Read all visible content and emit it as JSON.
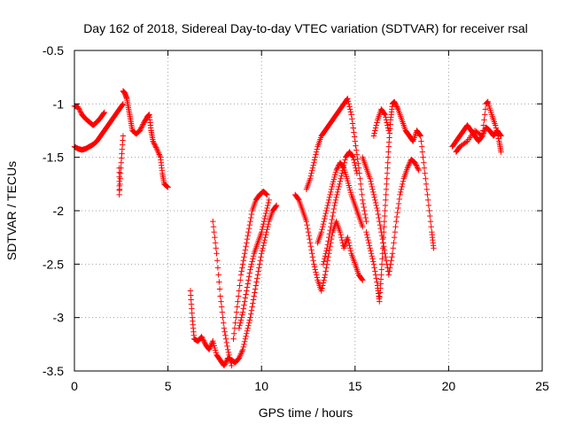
{
  "chart_data": {
    "type": "scatter",
    "title": "Day 162 of 2018, Sidereal Day-to-day VTEC variation (SDTVAR) for receiver rsal",
    "xlabel": "GPS time / hours",
    "ylabel": "SDTVAR / TECUs",
    "xlim": [
      0,
      25
    ],
    "ylim": [
      -3.5,
      -0.5
    ],
    "xticks": [
      0,
      5,
      10,
      15,
      20,
      25
    ],
    "yticks": [
      -3.5,
      -3,
      -2.5,
      -2,
      -1.5,
      -1,
      -0.5
    ],
    "xtick_labels": [
      "0",
      "5",
      "10",
      "15",
      "20",
      "25"
    ],
    "ytick_labels": [
      "-3.5",
      "-3",
      "-2.5",
      "-2",
      "-1.5",
      "-1",
      "-0.5"
    ],
    "grid": true,
    "marker": "+",
    "color": "#ff0000",
    "series": [
      {
        "name": "SDTVAR",
        "tracks": [
          [
            [
              0.0,
              -1.02
            ],
            [
              0.2,
              -1.03
            ],
            [
              0.4,
              -1.1
            ],
            [
              0.6,
              -1.14
            ],
            [
              0.8,
              -1.17
            ],
            [
              1.0,
              -1.2
            ],
            [
              1.2,
              -1.17
            ],
            [
              1.4,
              -1.13
            ],
            [
              1.6,
              -1.08
            ]
          ],
          [
            [
              0.0,
              -1.4
            ],
            [
              0.2,
              -1.42
            ],
            [
              0.4,
              -1.43
            ],
            [
              0.6,
              -1.42
            ],
            [
              0.8,
              -1.4
            ],
            [
              1.0,
              -1.38
            ],
            [
              1.2,
              -1.35
            ],
            [
              1.4,
              -1.3
            ],
            [
              1.6,
              -1.25
            ],
            [
              1.8,
              -1.2
            ],
            [
              2.0,
              -1.15
            ],
            [
              2.2,
              -1.1
            ],
            [
              2.4,
              -1.05
            ],
            [
              2.6,
              -1.0
            ]
          ],
          [
            [
              2.4,
              -1.6
            ],
            [
              2.4,
              -1.85
            ],
            [
              2.5,
              -1.55
            ],
            [
              2.6,
              -1.3
            ]
          ],
          [
            [
              2.6,
              -0.88
            ],
            [
              2.7,
              -0.9
            ],
            [
              2.8,
              -0.95
            ],
            [
              2.9,
              -1.05
            ],
            [
              3.0,
              -1.15
            ],
            [
              3.1,
              -1.25
            ],
            [
              3.3,
              -1.28
            ],
            [
              3.5,
              -1.25
            ],
            [
              3.7,
              -1.18
            ],
            [
              3.9,
              -1.12
            ],
            [
              4.0,
              -1.1
            ],
            [
              4.1,
              -1.25
            ],
            [
              4.2,
              -1.35
            ],
            [
              4.4,
              -1.42
            ],
            [
              4.6,
              -1.5
            ],
            [
              4.7,
              -1.65
            ],
            [
              4.8,
              -1.75
            ],
            [
              5.0,
              -1.78
            ]
          ],
          [
            [
              6.2,
              -2.75
            ],
            [
              6.3,
              -3.0
            ],
            [
              6.4,
              -3.2
            ],
            [
              6.6,
              -3.22
            ],
            [
              6.8,
              -3.18
            ],
            [
              7.0,
              -3.25
            ],
            [
              7.2,
              -3.3
            ],
            [
              7.4,
              -3.22
            ],
            [
              7.6,
              -3.35
            ],
            [
              7.8,
              -3.4
            ],
            [
              8.0,
              -3.45
            ],
            [
              8.2,
              -3.38
            ],
            [
              8.4,
              -3.4
            ],
            [
              8.6,
              -3.42
            ],
            [
              8.8,
              -3.38
            ],
            [
              9.0,
              -3.3
            ],
            [
              9.2,
              -3.15
            ],
            [
              9.4,
              -3.0
            ],
            [
              9.6,
              -2.8
            ],
            [
              9.8,
              -2.6
            ],
            [
              10.0,
              -2.4
            ],
            [
              10.2,
              -2.25
            ],
            [
              10.4,
              -2.1
            ],
            [
              10.6,
              -2.0
            ],
            [
              10.8,
              -1.95
            ]
          ],
          [
            [
              7.4,
              -2.1
            ],
            [
              7.6,
              -2.4
            ],
            [
              7.8,
              -2.8
            ],
            [
              8.0,
              -3.1
            ],
            [
              8.2,
              -3.3
            ],
            [
              8.4,
              -3.45
            ]
          ],
          [
            [
              8.5,
              -3.2
            ],
            [
              8.7,
              -2.9
            ],
            [
              8.9,
              -2.6
            ],
            [
              9.1,
              -2.4
            ],
            [
              9.3,
              -2.2
            ],
            [
              9.5,
              -2.0
            ],
            [
              9.7,
              -1.9
            ],
            [
              9.9,
              -1.85
            ],
            [
              10.1,
              -1.82
            ],
            [
              10.3,
              -1.85
            ]
          ],
          [
            [
              8.8,
              -3.1
            ],
            [
              9.0,
              -2.95
            ],
            [
              9.2,
              -2.75
            ],
            [
              9.4,
              -2.55
            ],
            [
              9.6,
              -2.4
            ],
            [
              9.8,
              -2.3
            ],
            [
              10.0,
              -2.2
            ],
            [
              10.2,
              -2.05
            ],
            [
              10.4,
              -1.9
            ]
          ],
          [
            [
              11.8,
              -1.85
            ],
            [
              12.0,
              -1.9
            ],
            [
              12.2,
              -2.0
            ],
            [
              12.4,
              -2.1
            ],
            [
              12.6,
              -2.3
            ],
            [
              12.8,
              -2.5
            ],
            [
              13.0,
              -2.65
            ],
            [
              13.2,
              -2.75
            ],
            [
              13.4,
              -2.6
            ],
            [
              13.6,
              -2.4
            ],
            [
              13.8,
              -2.2
            ],
            [
              14.0,
              -2.1
            ],
            [
              14.2,
              -2.2
            ],
            [
              14.4,
              -2.35
            ],
            [
              14.6,
              -2.25
            ],
            [
              14.8,
              -2.4
            ],
            [
              15.0,
              -2.5
            ],
            [
              15.2,
              -2.6
            ],
            [
              15.4,
              -2.65
            ]
          ],
          [
            [
              12.4,
              -1.8
            ],
            [
              12.6,
              -1.7
            ],
            [
              12.8,
              -1.55
            ],
            [
              13.0,
              -1.4
            ],
            [
              13.2,
              -1.3
            ],
            [
              13.4,
              -1.25
            ],
            [
              13.6,
              -1.2
            ],
            [
              13.8,
              -1.15
            ],
            [
              14.0,
              -1.1
            ],
            [
              14.2,
              -1.05
            ],
            [
              14.4,
              -1.0
            ],
            [
              14.6,
              -0.95
            ],
            [
              14.8,
              -1.1
            ],
            [
              15.0,
              -1.35
            ],
            [
              15.2,
              -1.6
            ],
            [
              15.4,
              -1.9
            ],
            [
              15.6,
              -2.1
            ]
          ],
          [
            [
              13.0,
              -2.3
            ],
            [
              13.2,
              -2.2
            ],
            [
              13.4,
              -2.05
            ],
            [
              13.6,
              -1.9
            ],
            [
              13.8,
              -1.75
            ],
            [
              14.0,
              -1.62
            ],
            [
              14.2,
              -1.55
            ],
            [
              14.4,
              -1.6
            ],
            [
              14.6,
              -1.72
            ],
            [
              14.8,
              -1.85
            ],
            [
              15.0,
              -1.95
            ],
            [
              15.2,
              -2.05
            ],
            [
              15.4,
              -2.15
            ]
          ],
          [
            [
              13.3,
              -2.5
            ],
            [
              13.5,
              -2.35
            ],
            [
              13.7,
              -2.15
            ],
            [
              13.9,
              -1.95
            ],
            [
              14.1,
              -1.8
            ],
            [
              14.3,
              -1.65
            ],
            [
              14.5,
              -1.5
            ],
            [
              14.7,
              -1.45
            ],
            [
              14.9,
              -1.5
            ],
            [
              15.1,
              -1.65
            ]
          ],
          [
            [
              15.6,
              -2.2
            ],
            [
              15.8,
              -2.35
            ],
            [
              16.0,
              -2.5
            ],
            [
              16.2,
              -2.7
            ],
            [
              16.3,
              -2.85
            ],
            [
              16.4,
              -2.6
            ],
            [
              16.5,
              -2.3
            ],
            [
              16.6,
              -2.0
            ],
            [
              16.7,
              -1.7
            ],
            [
              16.8,
              -1.4
            ],
            [
              16.9,
              -1.15
            ],
            [
              17.0,
              -1.0
            ],
            [
              17.1,
              -0.98
            ],
            [
              17.3,
              -1.05
            ],
            [
              17.5,
              -1.15
            ],
            [
              17.7,
              -1.25
            ],
            [
              17.9,
              -1.3
            ],
            [
              18.1,
              -1.35
            ],
            [
              18.3,
              -1.25
            ],
            [
              18.5,
              -1.3
            ],
            [
              18.7,
              -1.6
            ],
            [
              18.9,
              -1.9
            ],
            [
              19.1,
              -2.2
            ],
            [
              19.2,
              -2.35
            ]
          ],
          [
            [
              15.4,
              -1.5
            ],
            [
              15.6,
              -1.6
            ],
            [
              15.8,
              -1.7
            ],
            [
              16.0,
              -1.85
            ],
            [
              16.2,
              -2.0
            ],
            [
              16.4,
              -2.2
            ],
            [
              16.6,
              -2.4
            ],
            [
              16.8,
              -2.6
            ],
            [
              17.0,
              -2.4
            ],
            [
              17.2,
              -2.1
            ],
            [
              17.4,
              -1.85
            ],
            [
              17.6,
              -1.7
            ],
            [
              17.8,
              -1.6
            ],
            [
              18.0,
              -1.52
            ],
            [
              18.2,
              -1.55
            ],
            [
              18.4,
              -1.62
            ]
          ],
          [
            [
              16.0,
              -1.3
            ],
            [
              16.2,
              -1.15
            ],
            [
              16.4,
              -1.05
            ],
            [
              16.6,
              -1.1
            ],
            [
              16.8,
              -1.25
            ]
          ],
          [
            [
              20.2,
              -1.4
            ],
            [
              20.4,
              -1.35
            ],
            [
              20.6,
              -1.3
            ],
            [
              20.8,
              -1.25
            ],
            [
              21.0,
              -1.2
            ],
            [
              21.2,
              -1.25
            ],
            [
              21.4,
              -1.3
            ],
            [
              21.6,
              -1.35
            ],
            [
              21.8,
              -1.3
            ],
            [
              22.0,
              -1.22
            ],
            [
              22.2,
              -1.25
            ],
            [
              22.4,
              -1.3
            ],
            [
              22.6,
              -1.25
            ],
            [
              22.8,
              -1.3
            ]
          ],
          [
            [
              20.4,
              -1.45
            ],
            [
              20.6,
              -1.4
            ],
            [
              21.0,
              -1.35
            ],
            [
              21.4,
              -1.25
            ],
            [
              21.8,
              -1.3
            ],
            [
              22.0,
              -1.0
            ],
            [
              22.1,
              -0.98
            ],
            [
              22.3,
              -1.1
            ],
            [
              22.5,
              -1.2
            ],
            [
              22.7,
              -1.35
            ],
            [
              22.8,
              -1.45
            ]
          ]
        ]
      }
    ]
  }
}
